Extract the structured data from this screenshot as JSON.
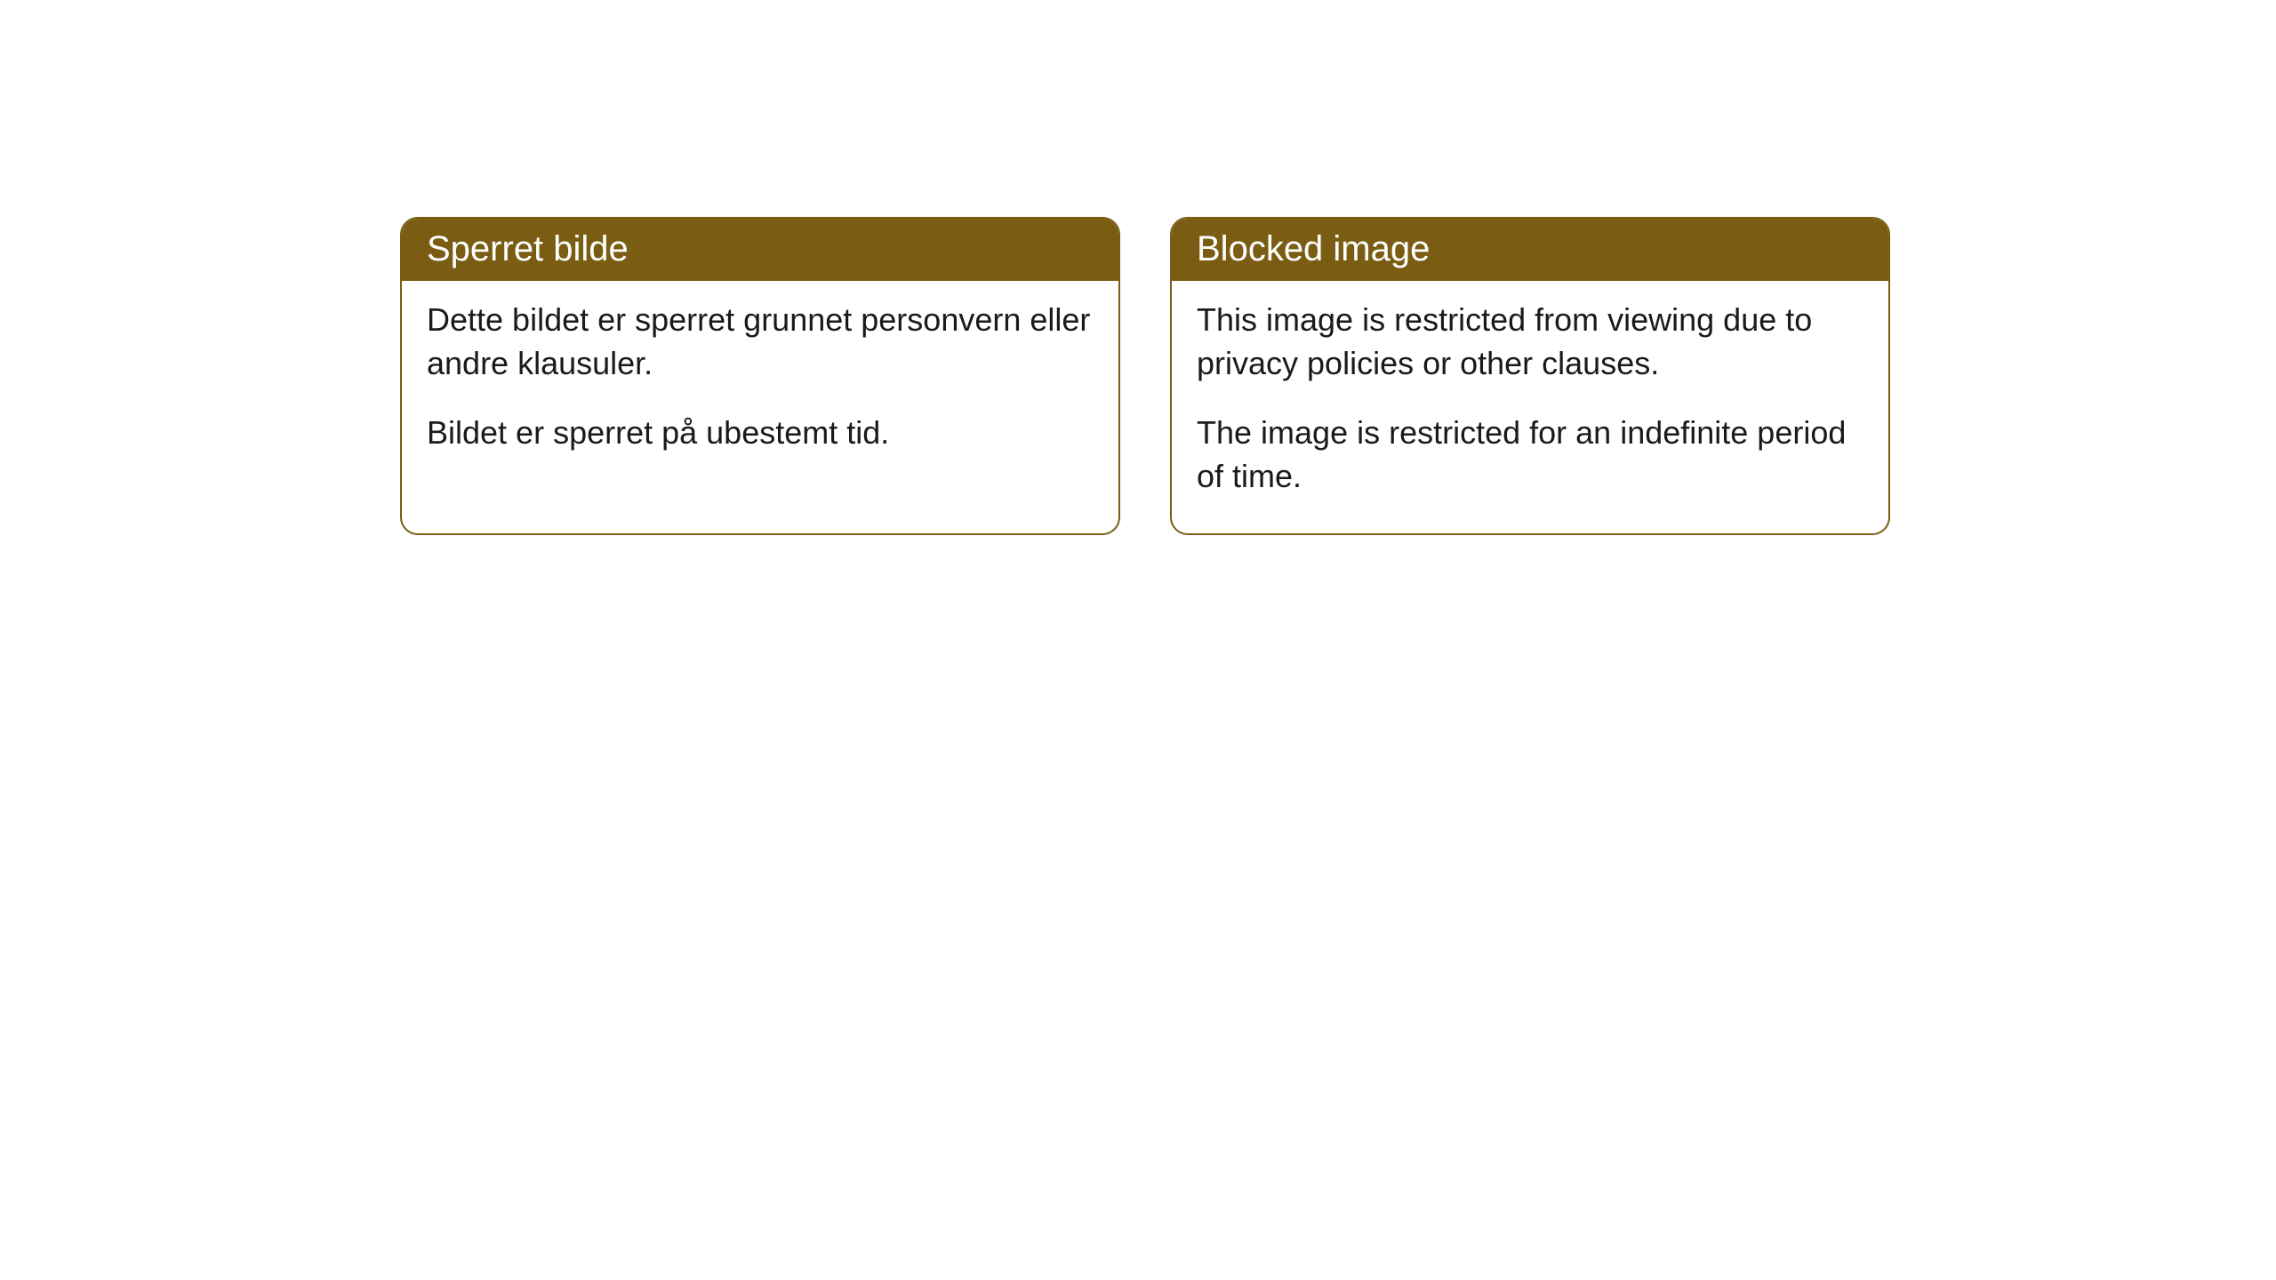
{
  "cards": [
    {
      "title": "Sperret bilde",
      "paragraph1": "Dette bildet er sperret grunnet personvern eller andre klausuler.",
      "paragraph2": "Bildet er sperret på ubestemt tid."
    },
    {
      "title": "Blocked image",
      "paragraph1": "This image is restricted from viewing due to privacy policies or other clauses.",
      "paragraph2": "The image is restricted for an indefinite period of time."
    }
  ],
  "styling": {
    "header_background": "#7a5d13",
    "header_text_color": "#ffffff",
    "border_color": "#7a5d13",
    "body_background": "#ffffff",
    "body_text_color": "#1a1a1a",
    "border_radius": 20,
    "title_fontsize": 40,
    "body_fontsize": 36
  }
}
